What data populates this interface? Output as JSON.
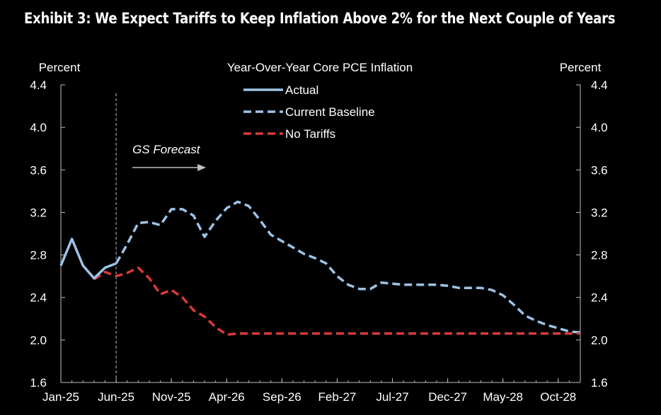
{
  "exhibit_title": "Exhibit 3: We Expect Tariffs to Keep Inflation Above 2% for the Next Couple of Years",
  "colors": {
    "background": "#000000",
    "actual": "#9DC3E6",
    "baseline": "#9DC3E6",
    "no_tariffs": "#D83A3A",
    "axis": "#BFBFBF",
    "text": "#FFFFFF"
  },
  "chart_data": {
    "type": "line",
    "title": "Year-Over-Year  Core PCE Inflation",
    "ylabel_left": "Percent",
    "ylabel_right": "Percent",
    "ylim": [
      1.6,
      4.4
    ],
    "yticks": [
      "1.6",
      "2.0",
      "2.4",
      "2.8",
      "3.2",
      "3.6",
      "4.0",
      "4.4"
    ],
    "x_tick_labels": [
      "Jan-25",
      "Jun-25",
      "Nov-25",
      "Apr-26",
      "Sep-26",
      "Feb-27",
      "Jul-27",
      "Dec-27",
      "May-28",
      "Oct-28"
    ],
    "forecast_start": "Jun-25",
    "annotation": "GS Forecast",
    "legend_placement": "top-center",
    "series": [
      {
        "name": "Actual",
        "style": "solid",
        "x": [
          "Jan-25",
          "Feb-25",
          "Mar-25",
          "Apr-25",
          "May-25",
          "Jun-25"
        ],
        "values": [
          2.7,
          2.95,
          2.7,
          2.58,
          2.68,
          2.72
        ]
      },
      {
        "name": "Current Baseline",
        "style": "dashed",
        "x": [
          "Jun-25",
          "Jul-25",
          "Aug-25",
          "Sep-25",
          "Oct-25",
          "Nov-25",
          "Dec-25",
          "Jan-26",
          "Feb-26",
          "Mar-26",
          "Apr-26",
          "May-26",
          "Jun-26",
          "Jul-26",
          "Aug-26",
          "Sep-26",
          "Oct-26",
          "Nov-26",
          "Dec-26",
          "Jan-27",
          "Feb-27",
          "Mar-27",
          "Apr-27",
          "May-27",
          "Jun-27",
          "Jul-27",
          "Aug-27",
          "Sep-27",
          "Oct-27",
          "Nov-27",
          "Dec-27",
          "Jan-28",
          "Feb-28",
          "Mar-28",
          "Apr-28",
          "May-28",
          "Jun-28",
          "Jul-28",
          "Aug-28",
          "Sep-28",
          "Oct-28",
          "Nov-28",
          "Dec-28"
        ],
        "values": [
          2.72,
          2.9,
          3.1,
          3.11,
          3.08,
          3.23,
          3.23,
          3.17,
          2.97,
          3.12,
          3.24,
          3.3,
          3.26,
          3.13,
          2.99,
          2.93,
          2.87,
          2.81,
          2.77,
          2.72,
          2.6,
          2.52,
          2.48,
          2.48,
          2.54,
          2.53,
          2.52,
          2.52,
          2.52,
          2.52,
          2.51,
          2.49,
          2.49,
          2.49,
          2.47,
          2.42,
          2.33,
          2.23,
          2.18,
          2.14,
          2.11,
          2.08,
          2.07
        ]
      },
      {
        "name": "No Tariffs",
        "style": "dashed",
        "x": [
          "Apr-25",
          "May-25",
          "Jun-25",
          "Jul-25",
          "Aug-25",
          "Sep-25",
          "Oct-25",
          "Nov-25",
          "Dec-25",
          "Jan-26",
          "Feb-26",
          "Mar-26",
          "Apr-26",
          "May-26",
          "Jun-26",
          "Jul-26",
          "Aug-26",
          "Sep-26",
          "Oct-26",
          "Nov-26",
          "Dec-26",
          "Jan-27",
          "Feb-27",
          "Mar-27",
          "Apr-27",
          "May-27",
          "Jun-27",
          "Jul-27",
          "Aug-27",
          "Sep-27",
          "Oct-27",
          "Nov-27",
          "Dec-27",
          "Jan-28",
          "Feb-28",
          "Mar-28",
          "Apr-28",
          "May-28",
          "Jun-28",
          "Jul-28",
          "Aug-28",
          "Sep-28",
          "Oct-28",
          "Nov-28",
          "Dec-28"
        ],
        "values": [
          2.57,
          2.64,
          2.6,
          2.63,
          2.68,
          2.58,
          2.43,
          2.47,
          2.4,
          2.28,
          2.22,
          2.12,
          2.05,
          2.06,
          2.06,
          2.06,
          2.06,
          2.06,
          2.06,
          2.06,
          2.06,
          2.06,
          2.06,
          2.06,
          2.06,
          2.06,
          2.06,
          2.06,
          2.06,
          2.06,
          2.06,
          2.06,
          2.06,
          2.06,
          2.06,
          2.06,
          2.06,
          2.06,
          2.06,
          2.06,
          2.06,
          2.06,
          2.06,
          2.06,
          2.06
        ]
      }
    ]
  }
}
